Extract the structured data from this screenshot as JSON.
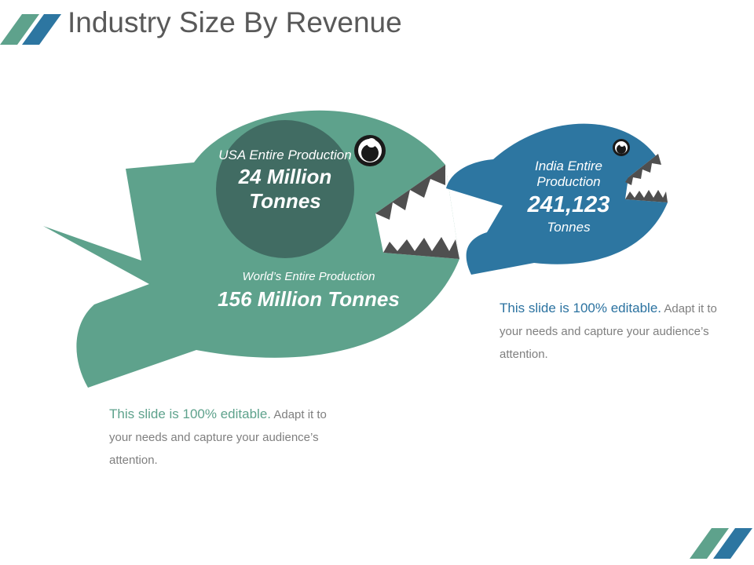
{
  "header": {
    "title": "Industry Size By Revenue"
  },
  "colors": {
    "green_fish": "#5ea28c",
    "green_circle": "#416c63",
    "blue_fish": "#2d76a1",
    "teeth_dark": "#4f4f4f",
    "title_text": "#595959",
    "body_text": "#7f7f7f"
  },
  "big_fish": {
    "inner_label": "USA Entire Production",
    "inner_value": "24 Million Tonnes",
    "outer_label": "World’s Entire Production",
    "outer_value": "156 Million Tonnes"
  },
  "small_fish": {
    "label": "India Entire Production",
    "value": "241,123",
    "unit": "Tonnes"
  },
  "notes": {
    "left": {
      "highlight": "This slide is 100% editable.",
      "body": " Adapt it to your needs and capture your audience’s attention."
    },
    "right": {
      "highlight": "This slide is 100% editable.",
      "body": " Adapt it to your needs and capture your audience’s attention."
    }
  }
}
